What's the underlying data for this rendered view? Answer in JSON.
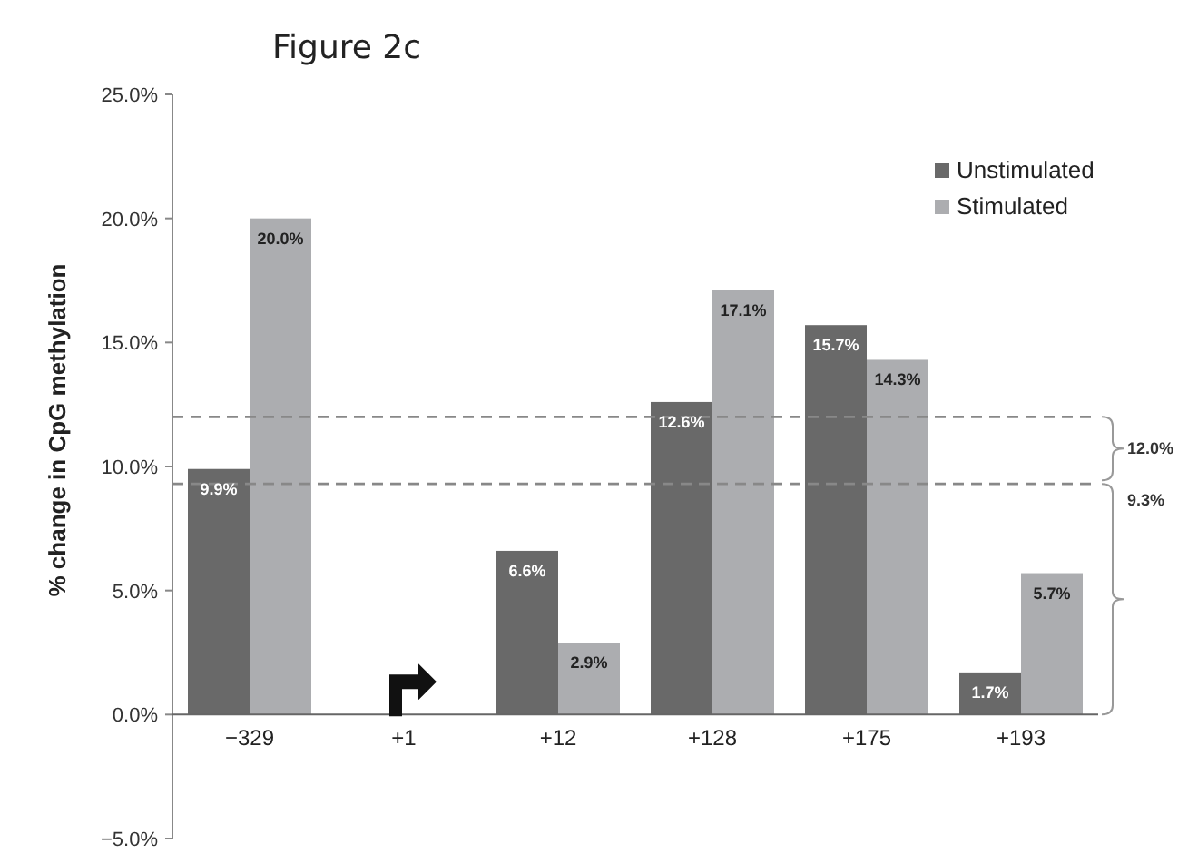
{
  "chart_data": {
    "type": "bar",
    "title": "Figure 2c",
    "ylabel": "% change in CpG methylation",
    "categories": [
      "−329",
      "+1",
      "+12",
      "+128",
      "+175",
      "+193"
    ],
    "series": [
      {
        "name": "Unstimulated",
        "color": "#696969",
        "values": [
          9.9,
          null,
          6.6,
          12.6,
          15.7,
          1.7
        ],
        "value_labels": [
          "9.9%",
          null,
          "6.6%",
          "12.6%",
          "15.7%",
          "1.7%"
        ]
      },
      {
        "name": "Stimulated",
        "color": "#acadb0",
        "values": [
          20.0,
          null,
          2.9,
          17.1,
          14.3,
          5.7
        ],
        "value_labels": [
          "20.0%",
          null,
          "2.9%",
          "17.1%",
          "14.3%",
          "5.7%"
        ]
      }
    ],
    "ylim": [
      -5,
      25
    ],
    "yticks": [
      {
        "value": -5,
        "label": "−5.0%"
      },
      {
        "value": 0,
        "label": "0.0%"
      },
      {
        "value": 5,
        "label": "5.0%"
      },
      {
        "value": 10,
        "label": "10.0%"
      },
      {
        "value": 15,
        "label": "15.0%"
      },
      {
        "value": 20,
        "label": "20.0%"
      },
      {
        "value": 25,
        "label": "25.0%"
      }
    ],
    "ref_lines": [
      {
        "axis": "y",
        "value": 12.0,
        "label": "12.0%",
        "color": "#888888",
        "line_style": "dashed"
      },
      {
        "axis": "y",
        "value": 9.3,
        "label": "9.3%",
        "color": "#888888",
        "line_style": "dashed"
      }
    ],
    "legend": "top right"
  }
}
